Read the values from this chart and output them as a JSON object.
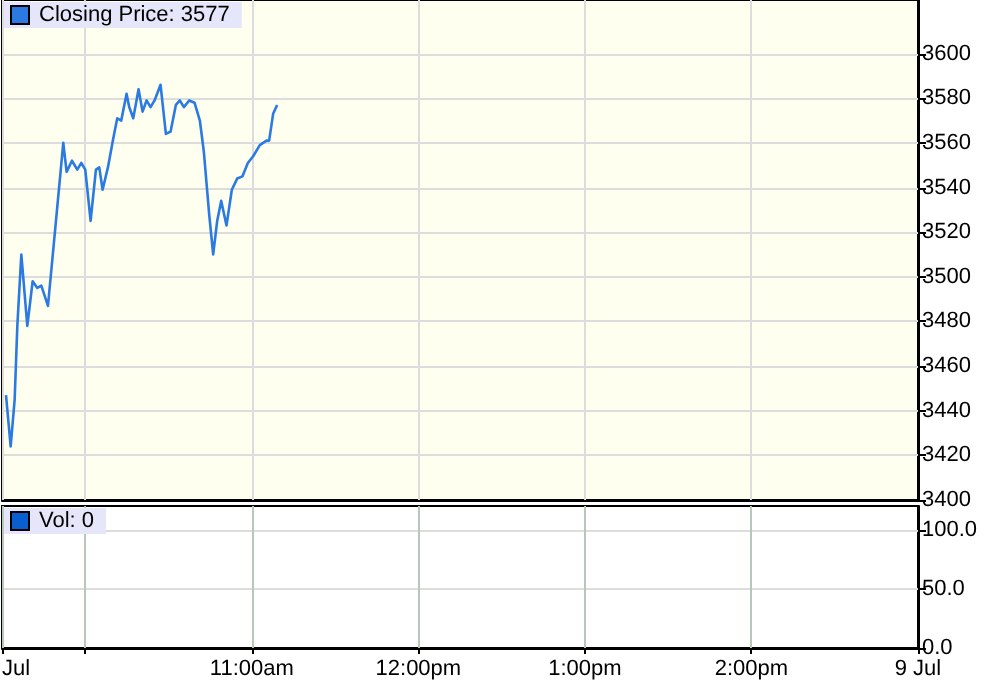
{
  "chart_data": [
    {
      "type": "line",
      "legend": "top left",
      "grid": true,
      "tick_labels": "y",
      "marker": "none",
      "series": [
        {
          "name": "Closing Price: 3577",
          "color": "#2a7ae2",
          "x": [
            9.524,
            9.552,
            9.576,
            9.592,
            9.616,
            9.652,
            9.684,
            9.712,
            9.736,
            9.776,
            9.824,
            9.868,
            9.888,
            9.92,
            9.952,
            9.976,
            10,
            10.032,
            10.064,
            10.084,
            10.104,
            10.136,
            10.168,
            10.192,
            10.216,
            10.248,
            10.264,
            10.288,
            10.32,
            10.344,
            10.368,
            10.392,
            10.416,
            10.452,
            10.484,
            10.512,
            10.544,
            10.568,
            10.592,
            10.624,
            10.656,
            10.688,
            10.712,
            10.744,
            10.768,
            10.792,
            10.816,
            10.848,
            10.88,
            10.912,
            10.944,
            10.976,
            11.008,
            11.048,
            11.088,
            11.104,
            11.128,
            11.152
          ],
          "values": [
            3447,
            3424,
            3445,
            3478,
            3510,
            3478,
            3498,
            3495,
            3496,
            3487,
            3525,
            3560,
            3547,
            3552,
            3548,
            3551,
            3548,
            3525,
            3548,
            3549,
            3539,
            3549,
            3562,
            3571,
            3570,
            3582,
            3576,
            3571,
            3584,
            3574,
            3579,
            3576,
            3579,
            3586,
            3564,
            3565,
            3577,
            3579,
            3576,
            3579,
            3578,
            3570,
            3556,
            3528,
            3510,
            3525,
            3534,
            3523,
            3539,
            3544,
            3545,
            3551,
            3554,
            3559,
            3561,
            3561,
            3573,
            3577
          ]
        }
      ],
      "xlim": [
        9.5,
        15
      ],
      "xticks": [
        {
          "value": 9.5,
          "label": null
        },
        {
          "value": 10,
          "label": null
        },
        {
          "value": 11,
          "label": null
        },
        {
          "value": 12,
          "label": null
        },
        {
          "value": 13,
          "label": null
        },
        {
          "value": 14,
          "label": null
        },
        {
          "value": 15,
          "label": null
        }
      ],
      "ylim": [
        3400,
        3624
      ],
      "yticks": [
        3400,
        3420,
        3440,
        3460,
        3480,
        3500,
        3520,
        3540,
        3560,
        3580,
        3600
      ]
    },
    {
      "type": "bar",
      "legend": "top left",
      "grid": true,
      "series": [
        {
          "name": "Vol: 0",
          "color": "#0a5fd0",
          "x": [
            11.152
          ],
          "values": [
            0
          ]
        }
      ],
      "xlim": [
        9.5,
        15
      ],
      "xticks": [
        {
          "value": 9.5,
          "label": "Jul"
        },
        {
          "value": 10,
          "label": null
        },
        {
          "value": 11,
          "label": "11:00am"
        },
        {
          "value": 12,
          "label": "12:00pm"
        },
        {
          "value": 13,
          "label": "1:00pm"
        },
        {
          "value": 14,
          "label": "2:00pm"
        },
        {
          "value": 15,
          "label": "9 Jul"
        }
      ],
      "ylim": [
        0,
        120
      ],
      "yticks": [
        {
          "value": 0,
          "label": "0.0"
        },
        {
          "value": 50,
          "label": "50.0"
        },
        {
          "value": 100,
          "label": "100.0"
        }
      ]
    }
  ]
}
